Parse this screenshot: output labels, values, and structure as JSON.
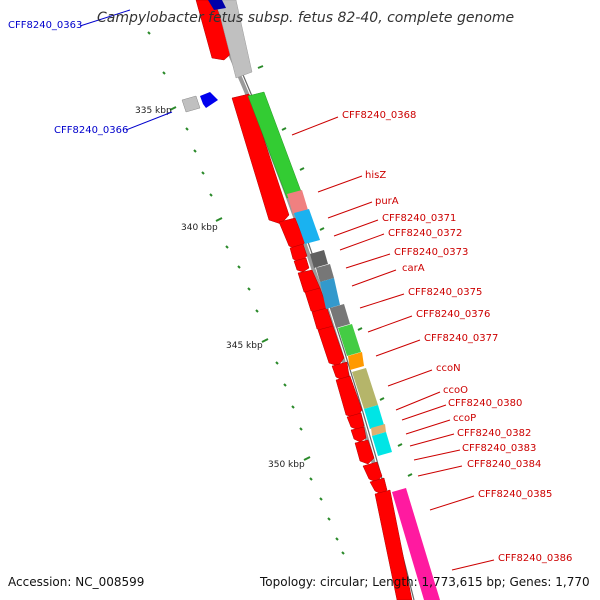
{
  "title": "Campylobacter fetus subsp. fetus 82-40, complete genome",
  "footer": {
    "accession": "Accession: NC_008599",
    "topology": "Topology: circular; Length: 1,773,615 bp; Genes: 1,770"
  },
  "colors": {
    "reverse_gene": "#ff0000",
    "left_label": "#0000cc",
    "right_label": "#cc0000",
    "backbone": "#888888",
    "tick": "#2a8a2a"
  },
  "tick_labels": [
    "335 kbp",
    "340 kbp",
    "345 kbp",
    "350 kbp"
  ],
  "gene_labels": [
    {
      "text": "CFF8240_0363",
      "side": "left"
    },
    {
      "text": "CFF8240_0366",
      "side": "left"
    },
    {
      "text": "CFF8240_0368",
      "side": "right"
    },
    {
      "text": "hisZ",
      "side": "right"
    },
    {
      "text": "purA",
      "side": "right"
    },
    {
      "text": "CFF8240_0371",
      "side": "right"
    },
    {
      "text": "CFF8240_0372",
      "side": "right"
    },
    {
      "text": "CFF8240_0373",
      "side": "right"
    },
    {
      "text": "carA",
      "side": "right"
    },
    {
      "text": "CFF8240_0375",
      "side": "right"
    },
    {
      "text": "CFF8240_0376",
      "side": "right"
    },
    {
      "text": "CFF8240_0377",
      "side": "right"
    },
    {
      "text": "ccoN",
      "side": "right"
    },
    {
      "text": "ccoO",
      "side": "right"
    },
    {
      "text": "CFF8240_0380",
      "side": "right"
    },
    {
      "text": "ccoP",
      "side": "right"
    },
    {
      "text": "CFF8240_0382",
      "side": "right"
    },
    {
      "text": "CFF8240_0383",
      "side": "right"
    },
    {
      "text": "CFF8240_0384",
      "side": "right"
    },
    {
      "text": "CFF8240_0385",
      "side": "right"
    },
    {
      "text": "CFF8240_0386",
      "side": "right"
    }
  ],
  "cog_colors": [
    "#c0c0c0",
    "#33cc33",
    "#f08080",
    "#1ab2f0",
    "#606060",
    "#3399cc",
    "#777777",
    "#44cc44",
    "#ff9900",
    "#b5b56a",
    "#00e5e5",
    "#e0b070",
    "#ff1aa0"
  ]
}
